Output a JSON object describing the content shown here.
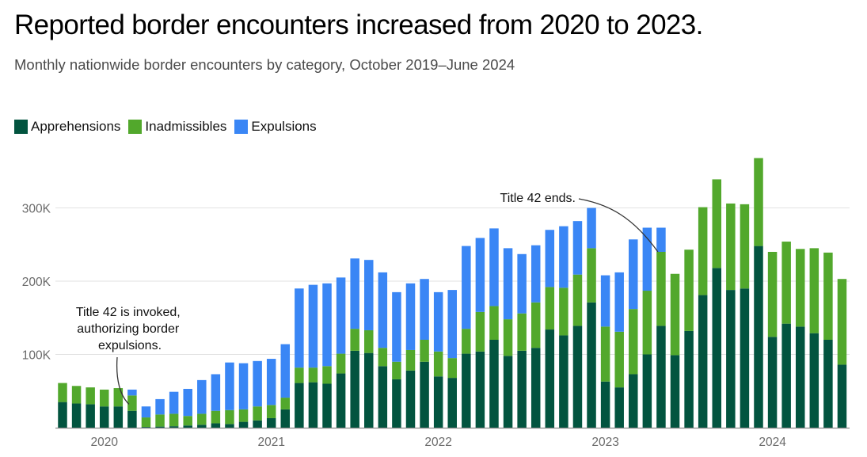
{
  "header": {
    "title": "Reported border encounters increased from 2020 to 2023.",
    "subtitle": "Monthly nationwide border encounters by category, October 2019–June 2024"
  },
  "colors": {
    "apprehensions": "#02543f",
    "inadmissibles": "#52a82c",
    "expulsions": "#3a86f5",
    "grid": "#e2e2e2",
    "axis": "#8a8a8a"
  },
  "chart_data": {
    "type": "bar",
    "stacked": true,
    "title": "Reported border encounters increased from 2020 to 2023.",
    "subtitle": "Monthly nationwide border encounters by category, October 2019–June 2024",
    "xlabel": "",
    "ylabel": "",
    "ylim": [
      0,
      375000
    ],
    "grid": true,
    "legend_position": "top-left",
    "y_ticks": [
      {
        "value": 100000,
        "label": "100K"
      },
      {
        "value": 200000,
        "label": "200K"
      },
      {
        "value": 300000,
        "label": "300K"
      }
    ],
    "x_ticks": [
      {
        "category": "2020-01",
        "label": "2020"
      },
      {
        "category": "2021-01",
        "label": "2021"
      },
      {
        "category": "2022-01",
        "label": "2022"
      },
      {
        "category": "2023-01",
        "label": "2023"
      },
      {
        "category": "2024-01",
        "label": "2024"
      }
    ],
    "categories": [
      "2019-10",
      "2019-11",
      "2019-12",
      "2020-01",
      "2020-02",
      "2020-03",
      "2020-04",
      "2020-05",
      "2020-06",
      "2020-07",
      "2020-08",
      "2020-09",
      "2020-10",
      "2020-11",
      "2020-12",
      "2021-01",
      "2021-02",
      "2021-03",
      "2021-04",
      "2021-05",
      "2021-06",
      "2021-07",
      "2021-08",
      "2021-09",
      "2021-10",
      "2021-11",
      "2021-12",
      "2022-01",
      "2022-02",
      "2022-03",
      "2022-04",
      "2022-05",
      "2022-06",
      "2022-07",
      "2022-08",
      "2022-09",
      "2022-10",
      "2022-11",
      "2022-12",
      "2023-01",
      "2023-02",
      "2023-03",
      "2023-04",
      "2023-05",
      "2023-06",
      "2023-07",
      "2023-08",
      "2023-09",
      "2023-10",
      "2023-11",
      "2023-12",
      "2024-01",
      "2024-02",
      "2024-03",
      "2024-04",
      "2024-05",
      "2024-06"
    ],
    "series": [
      {
        "name": "Apprehensions",
        "color_key": "apprehensions",
        "values": [
          35000,
          33000,
          32000,
          29000,
          29000,
          23000,
          1000,
          1500,
          2000,
          3000,
          4000,
          6000,
          5000,
          8000,
          10000,
          13000,
          25000,
          61000,
          62000,
          60000,
          74000,
          105000,
          102000,
          84000,
          66000,
          78000,
          90000,
          70000,
          68000,
          101000,
          104000,
          120000,
          98000,
          105000,
          109000,
          134000,
          126000,
          139000,
          171000,
          63000,
          55000,
          73000,
          100000,
          139000,
          99000,
          132000,
          181000,
          218000,
          188000,
          190000,
          248000,
          124000,
          142000,
          138000,
          129000,
          120000,
          86000
        ]
      },
      {
        "name": "Inadmissibles",
        "color_key": "inadmissibles",
        "values": [
          26000,
          24000,
          23000,
          23000,
          25000,
          21000,
          13000,
          16500,
          17000,
          13000,
          15000,
          17000,
          19000,
          17000,
          19000,
          18000,
          16000,
          21000,
          20000,
          24000,
          27000,
          30000,
          31000,
          25000,
          24000,
          28000,
          30000,
          34000,
          27000,
          34000,
          54000,
          46000,
          50000,
          51000,
          62000,
          58000,
          65000,
          70000,
          74000,
          75000,
          76000,
          89000,
          87000,
          101000,
          111000,
          111000,
          120000,
          121000,
          118000,
          115000,
          120000,
          116000,
          112000,
          106000,
          116000,
          119000,
          117000
        ]
      },
      {
        "name": "Expulsions",
        "color_key": "expulsions",
        "values": [
          0,
          0,
          0,
          0,
          0,
          8000,
          15000,
          21000,
          30000,
          37000,
          46000,
          50000,
          65000,
          63000,
          62000,
          63000,
          73000,
          108000,
          113000,
          113000,
          104000,
          96000,
          96000,
          103000,
          95000,
          91000,
          83000,
          81000,
          93000,
          113000,
          101000,
          106000,
          97000,
          81000,
          78000,
          78000,
          84000,
          73000,
          55000,
          70000,
          81000,
          95000,
          86000,
          33000,
          0,
          0,
          0,
          0,
          0,
          0,
          0,
          0,
          0,
          0,
          0,
          0,
          0
        ]
      }
    ],
    "annotations": [
      {
        "text_lines": [
          "Title 42 is invoked,",
          "authorizing border",
          "expulsions."
        ],
        "category": "2020-03"
      },
      {
        "text_lines": [
          "Title 42 ends."
        ],
        "category": "2023-05"
      }
    ]
  }
}
